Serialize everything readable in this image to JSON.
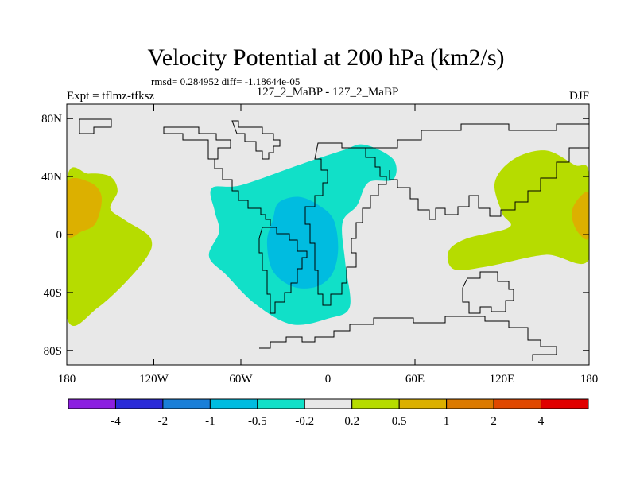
{
  "chart_data": {
    "type": "heatmap",
    "title": "Velocity Potential at 200 hPa (km2/s)",
    "stats_line": "rmsd= 0.284952 diff= -1.18644e-05",
    "left_label": "Expt = tflmz-tfksz",
    "center_label": "127_2_MaBP - 127_2_MaBP",
    "right_label": "DJF",
    "xlim": [
      -180,
      180
    ],
    "ylim": [
      -90,
      90
    ],
    "x_ticks": [
      {
        "value": -180,
        "label": "180"
      },
      {
        "value": -120,
        "label": "120W"
      },
      {
        "value": -60,
        "label": "60W"
      },
      {
        "value": 0,
        "label": "0"
      },
      {
        "value": 60,
        "label": "60E"
      },
      {
        "value": 120,
        "label": "120E"
      },
      {
        "value": 180,
        "label": "180"
      }
    ],
    "y_ticks": [
      {
        "value": 80,
        "label": "80N"
      },
      {
        "value": 40,
        "label": "40N"
      },
      {
        "value": 0,
        "label": "0"
      },
      {
        "value": -40,
        "label": "40S"
      },
      {
        "value": -80,
        "label": "80S"
      }
    ],
    "colorbar": {
      "levels": [
        "-4",
        "-2",
        "-1",
        "-0.5",
        "-0.2",
        "0.2",
        "0.5",
        "1",
        "2",
        "4"
      ],
      "colors": [
        "#8c1fe0",
        "#2a2ad8",
        "#1a7fd8",
        "#00bce0",
        "#11e0c8",
        "#e8e8e8",
        "#b6dc00",
        "#dcb000",
        "#dc7a00",
        "#e04800",
        "#e00000"
      ]
    },
    "regions": [
      {
        "name": "central-negative",
        "value_range": "-0.5 to -0.2",
        "color": "#11e0c8",
        "outline": [
          [
            -80,
            32
          ],
          [
            -60,
            34
          ],
          [
            -20,
            48
          ],
          [
            10,
            58
          ],
          [
            25,
            62
          ],
          [
            45,
            52
          ],
          [
            45,
            38
          ],
          [
            28,
            36
          ],
          [
            20,
            20
          ],
          [
            10,
            8
          ],
          [
            12,
            -20
          ],
          [
            15,
            -50
          ],
          [
            0,
            -58
          ],
          [
            -25,
            -62
          ],
          [
            -50,
            -48
          ],
          [
            -70,
            -28
          ],
          [
            -82,
            -15
          ],
          [
            -75,
            2
          ],
          [
            -78,
            16
          ]
        ]
      },
      {
        "name": "central-core",
        "value_range": "-1 to -0.5",
        "color": "#00bce0",
        "outline": [
          [
            -34,
            22
          ],
          [
            -20,
            26
          ],
          [
            -6,
            20
          ],
          [
            4,
            10
          ],
          [
            7,
            -10
          ],
          [
            3,
            -27
          ],
          [
            -8,
            -36
          ],
          [
            -24,
            -36
          ],
          [
            -38,
            -25
          ],
          [
            -42,
            -5
          ],
          [
            -38,
            10
          ]
        ]
      },
      {
        "name": "pacific-west-positive",
        "value_range": "0.2 to 0.5",
        "color": "#b6dc00",
        "outline": [
          [
            -180,
            38
          ],
          [
            -165,
            42
          ],
          [
            -150,
            40
          ],
          [
            -145,
            30
          ],
          [
            -150,
            18
          ],
          [
            -140,
            10
          ],
          [
            -122,
            -3
          ],
          [
            -128,
            -20
          ],
          [
            -158,
            -50
          ],
          [
            -180,
            -57
          ]
        ]
      },
      {
        "name": "pacific-west-core",
        "value_range": "0.5 to 1",
        "color": "#dcb000",
        "outline": [
          [
            -180,
            36
          ],
          [
            -164,
            36
          ],
          [
            -156,
            26
          ],
          [
            -160,
            8
          ],
          [
            -170,
            2
          ],
          [
            -180,
            0
          ]
        ]
      },
      {
        "name": "east-positive",
        "value_range": "0.2 to 0.5",
        "color": "#b6dc00",
        "outline": [
          [
            180,
            42
          ],
          [
            170,
            48
          ],
          [
            150,
            58
          ],
          [
            128,
            52
          ],
          [
            115,
            36
          ],
          [
            120,
            15
          ],
          [
            125,
            5
          ],
          [
            95,
            -3
          ],
          [
            83,
            -12
          ],
          [
            87,
            -24
          ],
          [
            110,
            -22
          ],
          [
            150,
            -14
          ],
          [
            180,
            -17
          ]
        ]
      },
      {
        "name": "east-core",
        "value_range": "0.5 to 1",
        "color": "#dcb000",
        "outline": [
          [
            180,
            28
          ],
          [
            172,
            24
          ],
          [
            168,
            14
          ],
          [
            172,
            2
          ],
          [
            180,
            -2
          ]
        ]
      }
    ]
  }
}
